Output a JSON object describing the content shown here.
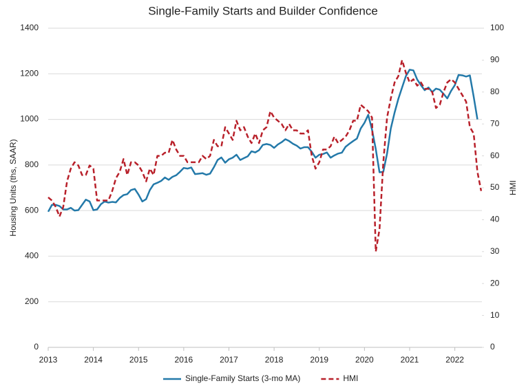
{
  "chart_data": {
    "type": "line",
    "title": "Single-Family Starts and Builder Confidence",
    "y_label": "Housing Units (ths, SAAR)",
    "y2_label": "HMI",
    "x": [
      2013,
      2013.083,
      2013.167,
      2013.25,
      2013.333,
      2013.417,
      2013.5,
      2013.583,
      2013.667,
      2013.75,
      2013.833,
      2013.917,
      2014,
      2014.083,
      2014.167,
      2014.25,
      2014.333,
      2014.417,
      2014.5,
      2014.583,
      2014.667,
      2014.75,
      2014.833,
      2014.917,
      2015,
      2015.083,
      2015.167,
      2015.25,
      2015.333,
      2015.417,
      2015.5,
      2015.583,
      2015.667,
      2015.75,
      2015.833,
      2015.917,
      2016,
      2016.083,
      2016.167,
      2016.25,
      2016.333,
      2016.417,
      2016.5,
      2016.583,
      2016.667,
      2016.75,
      2016.833,
      2016.917,
      2017,
      2017.083,
      2017.167,
      2017.25,
      2017.333,
      2017.417,
      2017.5,
      2017.583,
      2017.667,
      2017.75,
      2017.833,
      2017.917,
      2018,
      2018.083,
      2018.167,
      2018.25,
      2018.333,
      2018.417,
      2018.5,
      2018.583,
      2018.667,
      2018.75,
      2018.833,
      2018.917,
      2019,
      2019.083,
      2019.167,
      2019.25,
      2019.333,
      2019.417,
      2019.5,
      2019.583,
      2019.667,
      2019.75,
      2019.833,
      2019.917,
      2020,
      2020.083,
      2020.167,
      2020.25,
      2020.333,
      2020.417,
      2020.5,
      2020.583,
      2020.667,
      2020.75,
      2020.833,
      2020.917,
      2021,
      2021.083,
      2021.167,
      2021.25,
      2021.333,
      2021.417,
      2021.5,
      2021.583,
      2021.667,
      2021.75,
      2021.833,
      2021.917,
      2022,
      2022.083,
      2022.167,
      2022.25,
      2022.333,
      2022.417,
      2022.5,
      2022.583
    ],
    "series": [
      {
        "name": "Single-Family Starts (3-mo MA)",
        "color": "#2379a9",
        "axis": "y",
        "dash": false,
        "values": [
          595,
          625,
          625,
          620,
          605,
          605,
          612,
          600,
          602,
          625,
          648,
          640,
          602,
          605,
          628,
          640,
          635,
          638,
          636,
          655,
          668,
          672,
          690,
          695,
          670,
          640,
          650,
          690,
          715,
          722,
          730,
          745,
          735,
          748,
          755,
          770,
          787,
          784,
          789,
          760,
          762,
          764,
          757,
          762,
          790,
          822,
          833,
          810,
          825,
          832,
          845,
          822,
          830,
          838,
          860,
          855,
          865,
          888,
          892,
          888,
          875,
          890,
          900,
          913,
          905,
          893,
          885,
          872,
          878,
          878,
          858,
          832,
          845,
          848,
          855,
          832,
          842,
          850,
          854,
          880,
          893,
          905,
          916,
          960,
          985,
          1020,
          955,
          870,
          768,
          770,
          850,
          960,
          1030,
          1090,
          1140,
          1190,
          1218,
          1215,
          1175,
          1150,
          1128,
          1140,
          1120,
          1135,
          1130,
          1112,
          1092,
          1125,
          1150,
          1195,
          1193,
          1188,
          1193,
          1100,
          1000,
          null
        ]
      },
      {
        "name": "HMI",
        "color": "#b8202a",
        "axis": "y2",
        "dash": true,
        "values": [
          47,
          46,
          44,
          41,
          44,
          52,
          56,
          58,
          57,
          54,
          54,
          57,
          56,
          46,
          46,
          46,
          46,
          49,
          53,
          55,
          59,
          54,
          58,
          58,
          57,
          55,
          52,
          56,
          54,
          60,
          60,
          61,
          61,
          65,
          62,
          60,
          60,
          58,
          58,
          58,
          58,
          60,
          59,
          60,
          65,
          63,
          63,
          69,
          67,
          65,
          71,
          68,
          69,
          66,
          64,
          67,
          64,
          68,
          69,
          74,
          72,
          71,
          70,
          68,
          70,
          68,
          68,
          67,
          67,
          68,
          60,
          56,
          58,
          62,
          62,
          63,
          66,
          64,
          65,
          66,
          68,
          71,
          71,
          76,
          75,
          74,
          72,
          30,
          37,
          58,
          72,
          78,
          83,
          85,
          90,
          86,
          83,
          84,
          82,
          83,
          81,
          81,
          80,
          75,
          76,
          80,
          83,
          84,
          83,
          81,
          79,
          77,
          69,
          67,
          55,
          49
        ]
      }
    ],
    "xlim": [
      2013,
      2022.6
    ],
    "xticks": [
      2013,
      2014,
      2015,
      2016,
      2017,
      2018,
      2019,
      2020,
      2021,
      2022
    ],
    "ylim": [
      0,
      1400
    ],
    "yticks": [
      0,
      200,
      400,
      600,
      800,
      1000,
      1200,
      1400
    ],
    "y2lim": [
      0,
      100
    ],
    "y2ticks": [
      0,
      10,
      20,
      30,
      40,
      50,
      60,
      70,
      80,
      90,
      100
    ],
    "grid": true,
    "legend": "bottom"
  }
}
